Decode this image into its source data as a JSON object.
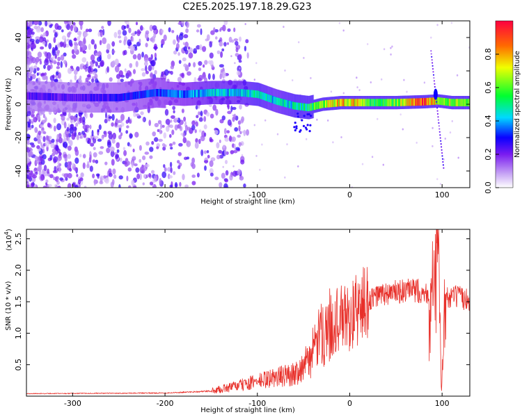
{
  "title": "C2E5.2025.197.18.29.G23",
  "chart_data": [
    {
      "type": "heatmap",
      "xlabel": "Height of straight line (km)",
      "ylabel": "Frequency (Hz)",
      "xlim": [
        -350,
        130
      ],
      "ylim": [
        -50,
        50
      ],
      "xticks": [
        -300,
        -200,
        -100,
        0,
        100
      ],
      "yticks": [
        -40,
        -20,
        0,
        20,
        40
      ],
      "colorbar": {
        "label": "Normalized spectral amplitude",
        "range": [
          0.0,
          1.0
        ],
        "ticks": [
          0.0,
          0.2,
          0.4,
          0.6,
          0.8
        ]
      },
      "ridge": [
        {
          "x": -350,
          "y": 5,
          "amp": 0.25
        },
        {
          "x": -300,
          "y": 4,
          "amp": 0.25
        },
        {
          "x": -250,
          "y": 4,
          "amp": 0.3
        },
        {
          "x": -210,
          "y": 7,
          "amp": 0.35
        },
        {
          "x": -180,
          "y": 6,
          "amp": 0.4
        },
        {
          "x": -150,
          "y": 7,
          "amp": 0.45
        },
        {
          "x": -120,
          "y": 7,
          "amp": 0.45
        },
        {
          "x": -100,
          "y": 6,
          "amp": 0.5
        },
        {
          "x": -80,
          "y": 2,
          "amp": 0.45
        },
        {
          "x": -60,
          "y": -1,
          "amp": 0.5
        },
        {
          "x": -45,
          "y": -2,
          "amp": 0.55
        },
        {
          "x": -30,
          "y": 0,
          "amp": 0.7
        },
        {
          "x": -10,
          "y": 1,
          "amp": 0.8
        },
        {
          "x": 0,
          "y": 1,
          "amp": 0.85
        },
        {
          "x": 20,
          "y": 1,
          "amp": 0.6
        },
        {
          "x": 50,
          "y": 1,
          "amp": 0.65
        },
        {
          "x": 80,
          "y": 1.5,
          "amp": 1.0
        },
        {
          "x": 95,
          "y": 2,
          "amp": 0.7
        },
        {
          "x": 110,
          "y": 1,
          "amp": 0.7
        },
        {
          "x": 130,
          "y": 1,
          "amp": 0.65
        }
      ]
    },
    {
      "type": "line",
      "xlabel": "Height of straight line (km)",
      "ylabel": "SNR (10 * v/v)",
      "multiplier": "(x10",
      "multiplier_exp": "4",
      "multiplier_close": ")",
      "xlim": [
        -350,
        130
      ],
      "ylim": [
        0,
        2.65
      ],
      "xticks": [
        -300,
        -200,
        -100,
        0,
        100
      ],
      "yticks": [
        0.5,
        1.0,
        1.5,
        2.0,
        2.5
      ],
      "ytick_labels": [
        "0.5",
        "1.0",
        "1.5",
        "2.0",
        "2.5"
      ],
      "color": "#e8302a",
      "envelope": [
        {
          "x": -350,
          "y": 0.04
        },
        {
          "x": -200,
          "y": 0.05
        },
        {
          "x": -150,
          "y": 0.08
        },
        {
          "x": -110,
          "y": 0.2
        },
        {
          "x": -80,
          "y": 0.3
        },
        {
          "x": -60,
          "y": 0.35
        },
        {
          "x": -45,
          "y": 0.55
        },
        {
          "x": -30,
          "y": 1.0
        },
        {
          "x": -15,
          "y": 1.2
        },
        {
          "x": 0,
          "y": 1.25
        },
        {
          "x": 15,
          "y": 1.45
        },
        {
          "x": 30,
          "y": 1.6
        },
        {
          "x": 50,
          "y": 1.65
        },
        {
          "x": 75,
          "y": 1.68
        },
        {
          "x": 88,
          "y": 1.6
        },
        {
          "x": 93,
          "y": 2.1
        },
        {
          "x": 96,
          "y": 2.6
        },
        {
          "x": 99,
          "y": 0.1
        },
        {
          "x": 103,
          "y": 1.55
        },
        {
          "x": 115,
          "y": 1.58
        },
        {
          "x": 130,
          "y": 1.52
        }
      ]
    }
  ]
}
